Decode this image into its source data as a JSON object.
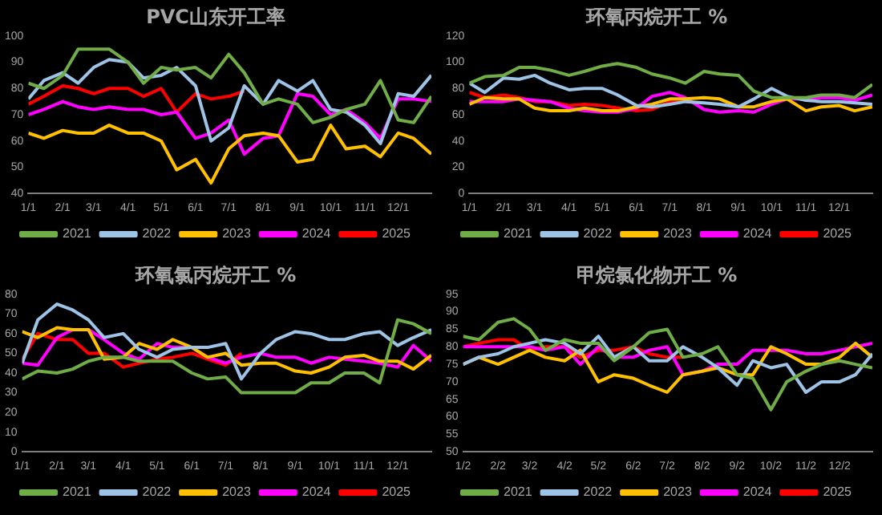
{
  "chart_data": [
    {
      "type": "line",
      "title": "PVC山东开工率",
      "legend": "bottom",
      "grid": false,
      "x": [
        "--01-01",
        "--01-15",
        "--02-01",
        "--02-15",
        "--03-01",
        "--03-15",
        "--04-01",
        "--04-15",
        "--05-01",
        "--05-15",
        "--06-01",
        "--06-15",
        "--07-01",
        "--07-15",
        "--08-01",
        "--08-15",
        "--09-01",
        "--09-15",
        "--10-01",
        "--10-15",
        "--11-01",
        "--11-15",
        "--12-01",
        "--12-15",
        "--12-31"
      ],
      "xlim": [
        "--01-01",
        "--12-31"
      ],
      "xticks": [
        {
          "value": "--01-01",
          "label": "1/1"
        },
        {
          "value": "--02-01",
          "label": "2/1"
        },
        {
          "value": "--03-01",
          "label": "3/1"
        },
        {
          "value": "--04-01",
          "label": "4/1"
        },
        {
          "value": "--05-01",
          "label": "5/1"
        },
        {
          "value": "--06-01",
          "label": "6/1"
        },
        {
          "value": "--07-01",
          "label": "7/1"
        },
        {
          "value": "--08-01",
          "label": "8/1"
        },
        {
          "value": "--09-01",
          "label": "9/1"
        },
        {
          "value": "--10-01",
          "label": "10/1"
        },
        {
          "value": "--11-01",
          "label": "11/1"
        },
        {
          "value": "--12-01",
          "label": "12/1"
        }
      ],
      "ylim": [
        40,
        100
      ],
      "yticks": [
        40,
        50,
        60,
        70,
        80,
        90,
        100
      ],
      "series": [
        {
          "name": "2021",
          "color": "#70ad47",
          "values": [
            82,
            80,
            85,
            95,
            95,
            95,
            90,
            82,
            88,
            87,
            88,
            84,
            93,
            86,
            74,
            76,
            74,
            67,
            69,
            72,
            74,
            83,
            68,
            67,
            77
          ]
        },
        {
          "name": "2022",
          "color": "#9dc3e6",
          "values": [
            76,
            83,
            86,
            82,
            88,
            91,
            90,
            84,
            85,
            88,
            81,
            60,
            65,
            81,
            74,
            83,
            79,
            83,
            72,
            71,
            66,
            59,
            78,
            77,
            85
          ]
        },
        {
          "name": "2023",
          "color": "#ffc000",
          "values": [
            63,
            61,
            64,
            63,
            63,
            66,
            63,
            63,
            60,
            49,
            53,
            44,
            57,
            62,
            63,
            62,
            52,
            53,
            66,
            57,
            58,
            54,
            63,
            61,
            55
          ]
        },
        {
          "name": "2024",
          "color": "#ff00ff",
          "values": [
            70,
            72,
            75,
            73,
            72,
            73,
            72,
            72,
            70,
            71,
            61,
            63,
            68,
            55,
            61,
            62,
            78,
            77,
            70,
            72,
            67,
            61,
            76,
            76,
            75
          ]
        },
        {
          "name": "2025",
          "color": "#ff0000",
          "values": [
            74,
            77,
            81,
            80,
            78,
            80,
            80,
            77,
            80,
            71,
            78,
            76,
            77,
            79,
            null,
            null,
            null,
            null,
            null,
            null,
            null,
            null,
            null,
            null,
            null
          ]
        }
      ]
    },
    {
      "type": "line",
      "title": "环氧丙烷开工 %",
      "legend": "bottom",
      "grid": false,
      "x": [
        "--01-01",
        "--01-15",
        "--02-01",
        "--02-15",
        "--03-01",
        "--03-15",
        "--04-01",
        "--04-15",
        "--05-01",
        "--05-15",
        "--06-01",
        "--06-15",
        "--07-01",
        "--07-15",
        "--08-01",
        "--08-15",
        "--09-01",
        "--09-15",
        "--10-01",
        "--10-15",
        "--11-01",
        "--11-15",
        "--12-01",
        "--12-15",
        "--12-31"
      ],
      "xlim": [
        "--01-01",
        "--12-31"
      ],
      "xticks": [
        {
          "value": "--01-01",
          "label": "1/1"
        },
        {
          "value": "--02-01",
          "label": "2/1"
        },
        {
          "value": "--03-01",
          "label": "3/1"
        },
        {
          "value": "--04-01",
          "label": "4/1"
        },
        {
          "value": "--05-01",
          "label": "5/1"
        },
        {
          "value": "--06-01",
          "label": "6/1"
        },
        {
          "value": "--07-01",
          "label": "7/1"
        },
        {
          "value": "--08-01",
          "label": "8/1"
        },
        {
          "value": "--09-01",
          "label": "9/1"
        },
        {
          "value": "--10-01",
          "label": "10/1"
        },
        {
          "value": "--11-01",
          "label": "11/1"
        },
        {
          "value": "--12-01",
          "label": "12/1"
        }
      ],
      "ylim": [
        0,
        120
      ],
      "yticks": [
        0,
        20,
        40,
        60,
        80,
        100,
        120
      ],
      "series": [
        {
          "name": "2021",
          "color": "#70ad47",
          "values": [
            84,
            89,
            90,
            96,
            96,
            94,
            90,
            93,
            97,
            99,
            96,
            91,
            88,
            84,
            93,
            91,
            90,
            78,
            73,
            73,
            73,
            75,
            75,
            73,
            83
          ]
        },
        {
          "name": "2022",
          "color": "#9dc3e6",
          "values": [
            84,
            77,
            88,
            87,
            90,
            84,
            79,
            80,
            80,
            75,
            67,
            66,
            68,
            70,
            69,
            68,
            66,
            72,
            80,
            74,
            71,
            70,
            70,
            69,
            68
          ]
        },
        {
          "name": "2023",
          "color": "#ffc000",
          "values": [
            68,
            73,
            72,
            72,
            65,
            63,
            63,
            65,
            63,
            63,
            66,
            68,
            72,
            72,
            73,
            72,
            66,
            66,
            70,
            72,
            63,
            66,
            67,
            63,
            66
          ]
        },
        {
          "name": "2024",
          "color": "#ff00ff",
          "values": [
            70,
            70,
            70,
            72,
            71,
            70,
            65,
            63,
            62,
            62,
            65,
            74,
            77,
            73,
            64,
            62,
            63,
            62,
            68,
            72,
            72,
            73,
            73,
            71,
            75
          ]
        },
        {
          "name": "2025",
          "color": "#ff0000",
          "values": [
            77,
            73,
            75,
            73,
            70,
            70,
            67,
            68,
            67,
            65,
            63,
            64,
            70,
            72,
            null,
            null,
            null,
            null,
            null,
            null,
            null,
            null,
            null,
            null,
            null
          ]
        }
      ]
    },
    {
      "type": "line",
      "title": "环氧氯丙烷开工 %",
      "legend": "bottom",
      "grid": false,
      "x": [
        "--01-01",
        "--01-15",
        "--02-01",
        "--02-15",
        "--03-01",
        "--03-15",
        "--04-01",
        "--04-15",
        "--05-01",
        "--05-15",
        "--06-01",
        "--06-15",
        "--07-01",
        "--07-15",
        "--08-01",
        "--08-15",
        "--09-01",
        "--09-15",
        "--10-01",
        "--10-15",
        "--11-01",
        "--11-15",
        "--12-01",
        "--12-15",
        "--12-31"
      ],
      "xlim": [
        "--01-01",
        "--12-31"
      ],
      "xticks": [
        {
          "value": "--01-01",
          "label": "1/1"
        },
        {
          "value": "--02-01",
          "label": "2/1"
        },
        {
          "value": "--03-01",
          "label": "3/1"
        },
        {
          "value": "--04-01",
          "label": "4/1"
        },
        {
          "value": "--05-01",
          "label": "5/1"
        },
        {
          "value": "--06-01",
          "label": "6/1"
        },
        {
          "value": "--07-01",
          "label": "7/1"
        },
        {
          "value": "--08-01",
          "label": "8/1"
        },
        {
          "value": "--09-01",
          "label": "9/1"
        },
        {
          "value": "--10-01",
          "label": "10/1"
        },
        {
          "value": "--11-01",
          "label": "11/1"
        },
        {
          "value": "--12-01",
          "label": "12/1"
        }
      ],
      "ylim": [
        0,
        80
      ],
      "yticks": [
        0,
        10,
        20,
        30,
        40,
        50,
        60,
        70,
        80
      ],
      "series": [
        {
          "name": "2021",
          "color": "#70ad47",
          "values": [
            37,
            41,
            40,
            42,
            46,
            48,
            48,
            46,
            46,
            46,
            40,
            37,
            38,
            30,
            30,
            30,
            30,
            35,
            35,
            40,
            40,
            35,
            67,
            65,
            60
          ]
        },
        {
          "name": "2022",
          "color": "#9dc3e6",
          "values": [
            45,
            67,
            75,
            72,
            67,
            58,
            60,
            52,
            48,
            52,
            53,
            53,
            55,
            37,
            50,
            57,
            61,
            60,
            57,
            57,
            60,
            61,
            54,
            58,
            62
          ]
        },
        {
          "name": "2023",
          "color": "#ffc000",
          "values": [
            61,
            58,
            63,
            62,
            62,
            47,
            48,
            55,
            52,
            57,
            53,
            48,
            50,
            44,
            45,
            45,
            41,
            40,
            43,
            48,
            49,
            46,
            46,
            42,
            49
          ]
        },
        {
          "name": "2024",
          "color": "#ff00ff",
          "values": [
            45,
            44,
            58,
            62,
            62,
            57,
            50,
            47,
            55,
            53,
            53,
            48,
            45,
            48,
            50,
            48,
            48,
            45,
            48,
            47,
            46,
            45,
            43,
            54,
            46
          ]
        },
        {
          "name": "2025",
          "color": "#ff0000",
          "values": [
            47,
            60,
            57,
            57,
            50,
            50,
            43,
            45,
            47,
            48,
            50,
            47,
            44,
            50,
            null,
            null,
            null,
            null,
            null,
            null,
            null,
            null,
            null,
            null,
            null
          ]
        }
      ]
    },
    {
      "type": "line",
      "title": "甲烷氯化物开工 %",
      "legend": "bottom",
      "grid": false,
      "x": [
        "--01-02",
        "--01-16",
        "--02-02",
        "--02-16",
        "--03-02",
        "--03-16",
        "--04-02",
        "--04-16",
        "--05-02",
        "--05-16",
        "--06-02",
        "--06-16",
        "--07-02",
        "--07-16",
        "--08-02",
        "--08-16",
        "--09-02",
        "--09-16",
        "--10-02",
        "--10-16",
        "--11-02",
        "--11-16",
        "--12-02",
        "--12-16",
        "--12-31"
      ],
      "xlim": [
        "--01-02",
        "--12-31"
      ],
      "xticks": [
        {
          "value": "--01-02",
          "label": "1/2"
        },
        {
          "value": "--02-02",
          "label": "2/2"
        },
        {
          "value": "--03-02",
          "label": "3/2"
        },
        {
          "value": "--04-02",
          "label": "4/2"
        },
        {
          "value": "--05-02",
          "label": "5/2"
        },
        {
          "value": "--06-02",
          "label": "6/2"
        },
        {
          "value": "--07-02",
          "label": "7/2"
        },
        {
          "value": "--08-02",
          "label": "8/2"
        },
        {
          "value": "--09-02",
          "label": "9/2"
        },
        {
          "value": "--10-02",
          "label": "10/2"
        },
        {
          "value": "--11-02",
          "label": "11/2"
        },
        {
          "value": "--12-02",
          "label": "12/2"
        }
      ],
      "ylim": [
        50,
        95
      ],
      "yticks": [
        50,
        55,
        60,
        65,
        70,
        75,
        80,
        85,
        90,
        95
      ],
      "series": [
        {
          "name": "2021",
          "color": "#70ad47",
          "values": [
            83,
            82,
            87,
            88,
            85,
            79,
            82,
            81,
            81,
            76,
            80,
            84,
            85,
            77,
            78,
            80,
            72,
            71,
            62,
            70,
            73,
            75,
            76,
            75,
            74
          ]
        },
        {
          "name": "2022",
          "color": "#9dc3e6",
          "values": [
            75,
            77,
            78,
            80,
            81,
            82,
            81,
            78,
            83,
            77,
            80,
            76,
            76,
            80,
            77,
            74,
            69,
            76,
            74,
            75,
            67,
            70,
            70,
            72,
            78
          ]
        },
        {
          "name": "2023",
          "color": "#ffc000",
          "values": [
            75,
            77,
            75,
            77,
            79,
            77,
            76,
            79,
            70,
            72,
            71,
            69,
            67,
            72,
            73,
            74,
            72,
            72,
            80,
            78,
            75,
            75,
            77,
            81,
            77
          ]
        },
        {
          "name": "2024",
          "color": "#ff00ff",
          "values": [
            80,
            80,
            80,
            80,
            80,
            79,
            80,
            75,
            80,
            77,
            77,
            79,
            80,
            72,
            73,
            75,
            75,
            79,
            79,
            79,
            78,
            78,
            79,
            80,
            81
          ]
        },
        {
          "name": "2025",
          "color": "#ff0000",
          "values": [
            80,
            81,
            82,
            82,
            79,
            80,
            80,
            77,
            79,
            79,
            80,
            78,
            77,
            77,
            null,
            null,
            null,
            null,
            null,
            null,
            null,
            null,
            null,
            null,
            null
          ]
        }
      ]
    }
  ]
}
